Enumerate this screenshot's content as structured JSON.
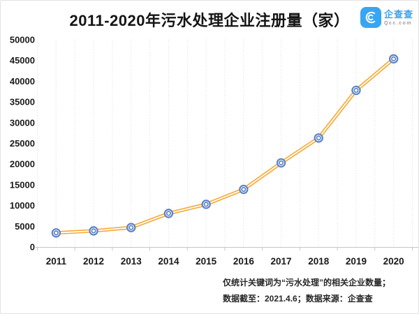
{
  "header": {
    "title": "2011-2020年污水处理企业注册量（家）",
    "logo": {
      "name": "企查查",
      "domain": "Qcc.com",
      "brand_color": "#38a5f3"
    }
  },
  "chart_data": {
    "type": "line",
    "title": "2011-2020年污水处理企业注册量（家）",
    "categories": [
      "2011",
      "2012",
      "2013",
      "2014",
      "2015",
      "2016",
      "2017",
      "2018",
      "2019",
      "2020"
    ],
    "values": [
      3400,
      3900,
      4700,
      8100,
      10300,
      13900,
      20300,
      26300,
      37800,
      45400
    ],
    "ylabel": "",
    "xlabel": "",
    "ylim": [
      0,
      50000
    ],
    "ytick_step": 5000,
    "grid": "vertical-dotted-half-steps",
    "legend": "none",
    "line_color": "#f7a832",
    "line_core_color": "#ffffff",
    "marker_color": "#5b84c6",
    "axis_color": "#c6c6c6",
    "grid_color": "#d9d9d9",
    "tick_label_color": "#1a1a1a"
  },
  "footer": {
    "line1": "仅统计关键词为“污水处理”的相关企业数量；",
    "line2": "数据截至：2021.4.6；数据来源：企查查"
  }
}
